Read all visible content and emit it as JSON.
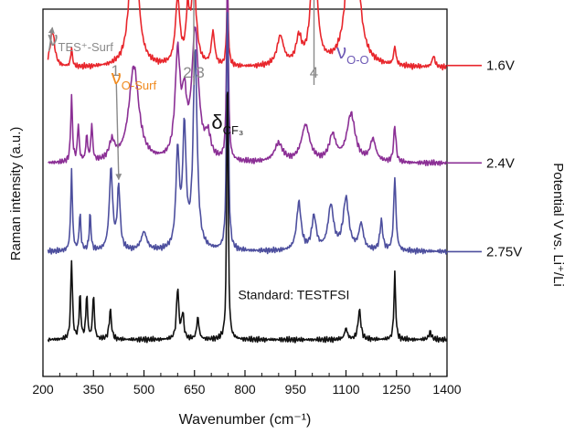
{
  "chart_data": {
    "type": "line",
    "title": "",
    "xlabel": "Wavenumber (cm⁻¹)",
    "ylabel": "Raman intensity (a.u.)",
    "right_label": "Potential V vs. Li⁺/Li",
    "xlim": [
      200,
      1400
    ],
    "xticks": [
      200,
      350,
      500,
      650,
      800,
      950,
      1100,
      1250,
      1400
    ],
    "grid": false,
    "series": [
      {
        "name": "1.6V",
        "color": "#e8262c",
        "baseline": 0.84,
        "peaks": [
          [
            228,
            0.1,
            8
          ],
          [
            285,
            0.05,
            3
          ],
          [
            470,
            0.49,
            12
          ],
          [
            600,
            0.18,
            8
          ],
          [
            630,
            0.13,
            6
          ],
          [
            648,
            0.22,
            9
          ],
          [
            705,
            0.09,
            6
          ],
          [
            748,
            0.2,
            3
          ],
          [
            905,
            0.08,
            12
          ],
          [
            960,
            0.07,
            10
          ],
          [
            1005,
            0.36,
            10
          ],
          [
            1120,
            0.76,
            13
          ],
          [
            1245,
            0.05,
            4
          ],
          [
            1360,
            0.03,
            5
          ]
        ]
      },
      {
        "name": "2.4V",
        "color": "#8b2f95",
        "baseline": 0.58,
        "peaks": [
          [
            285,
            0.18,
            3
          ],
          [
            305,
            0.1,
            3
          ],
          [
            330,
            0.07,
            3
          ],
          [
            345,
            0.1,
            3
          ],
          [
            405,
            0.05,
            10
          ],
          [
            470,
            0.26,
            18
          ],
          [
            600,
            0.28,
            9
          ],
          [
            620,
            0.14,
            8
          ],
          [
            652,
            0.35,
            12
          ],
          [
            690,
            0.06,
            10
          ],
          [
            748,
            0.52,
            3
          ],
          [
            900,
            0.05,
            15
          ],
          [
            980,
            0.1,
            15
          ],
          [
            1060,
            0.07,
            12
          ],
          [
            1115,
            0.13,
            15
          ],
          [
            1180,
            0.06,
            10
          ],
          [
            1245,
            0.1,
            4
          ]
        ]
      },
      {
        "name": "2.75V",
        "color": "#4d4f9e",
        "baseline": 0.34,
        "peaks": [
          [
            285,
            0.22,
            3
          ],
          [
            310,
            0.1,
            3
          ],
          [
            340,
            0.1,
            3
          ],
          [
            402,
            0.22,
            6
          ],
          [
            425,
            0.17,
            5
          ],
          [
            500,
            0.05,
            10
          ],
          [
            600,
            0.26,
            6
          ],
          [
            620,
            0.32,
            6
          ],
          [
            652,
            0.54,
            7
          ],
          [
            748,
            0.72,
            3
          ],
          [
            960,
            0.13,
            8
          ],
          [
            1005,
            0.09,
            8
          ],
          [
            1055,
            0.12,
            10
          ],
          [
            1100,
            0.14,
            10
          ],
          [
            1145,
            0.07,
            8
          ],
          [
            1205,
            0.08,
            5
          ],
          [
            1245,
            0.2,
            4
          ]
        ]
      },
      {
        "name": "Standard: TESTFSI",
        "color": "#111111",
        "baseline": 0.1,
        "peaks": [
          [
            285,
            0.22,
            3
          ],
          [
            310,
            0.12,
            3
          ],
          [
            330,
            0.12,
            3
          ],
          [
            350,
            0.12,
            3
          ],
          [
            400,
            0.08,
            4
          ],
          [
            600,
            0.14,
            4
          ],
          [
            615,
            0.07,
            4
          ],
          [
            660,
            0.06,
            4
          ],
          [
            748,
            0.78,
            2.5
          ],
          [
            1100,
            0.03,
            5
          ],
          [
            1140,
            0.08,
            5
          ],
          [
            1245,
            0.18,
            3
          ],
          [
            1350,
            0.02,
            5
          ]
        ]
      }
    ],
    "series_labels": [
      "1.6V",
      "2.4V",
      "2.75V"
    ],
    "curve_annotations": [
      "Standard: TESTFSI"
    ],
    "annotations": [
      {
        "id": "tes-surf",
        "text": "ν",
        "sub": "TES⁺-Surf",
        "color": "#8a8a8a",
        "x": 218
      },
      {
        "id": "peak-1",
        "text": "1",
        "sub": "",
        "color": "#8a8a8a",
        "x": 425
      },
      {
        "id": "o-surf",
        "text": "ν",
        "sub": "O-Surf",
        "color": "#f08a1e",
        "x": 470
      },
      {
        "id": "peak-23",
        "text": "2,3",
        "sub": "",
        "color": "#8a8a8a",
        "x": 648
      },
      {
        "id": "delta-cf3",
        "text": "δ",
        "sub": "CF₃",
        "color": "#111111",
        "x": 748
      },
      {
        "id": "peak-4",
        "text": "4",
        "sub": "",
        "color": "#8a8a8a",
        "x": 1005
      },
      {
        "id": "o-o",
        "text": "ν",
        "sub": "O-O",
        "color": "#6e59b5",
        "x": 1120
      }
    ]
  }
}
